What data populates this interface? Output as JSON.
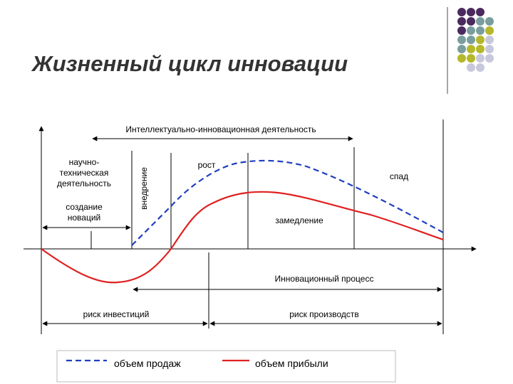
{
  "header": {
    "title": "Жизненный цикл инновации"
  },
  "diagram": {
    "top_span": "Интеллектуально-инновационная деятельность",
    "research": [
      "научно-",
      "техническая",
      "деятельность"
    ],
    "creation": [
      "создание",
      "новаций"
    ],
    "introduction": "внедрение",
    "growth": "рост",
    "decline": "спад",
    "slowdown": "замедление",
    "process": "Инновационный процесс",
    "investment_risk": "риск инвестиций",
    "production_risk": "риск производств"
  },
  "legend": {
    "sales": "объем продаж",
    "profit": "объем прибыли"
  }
}
